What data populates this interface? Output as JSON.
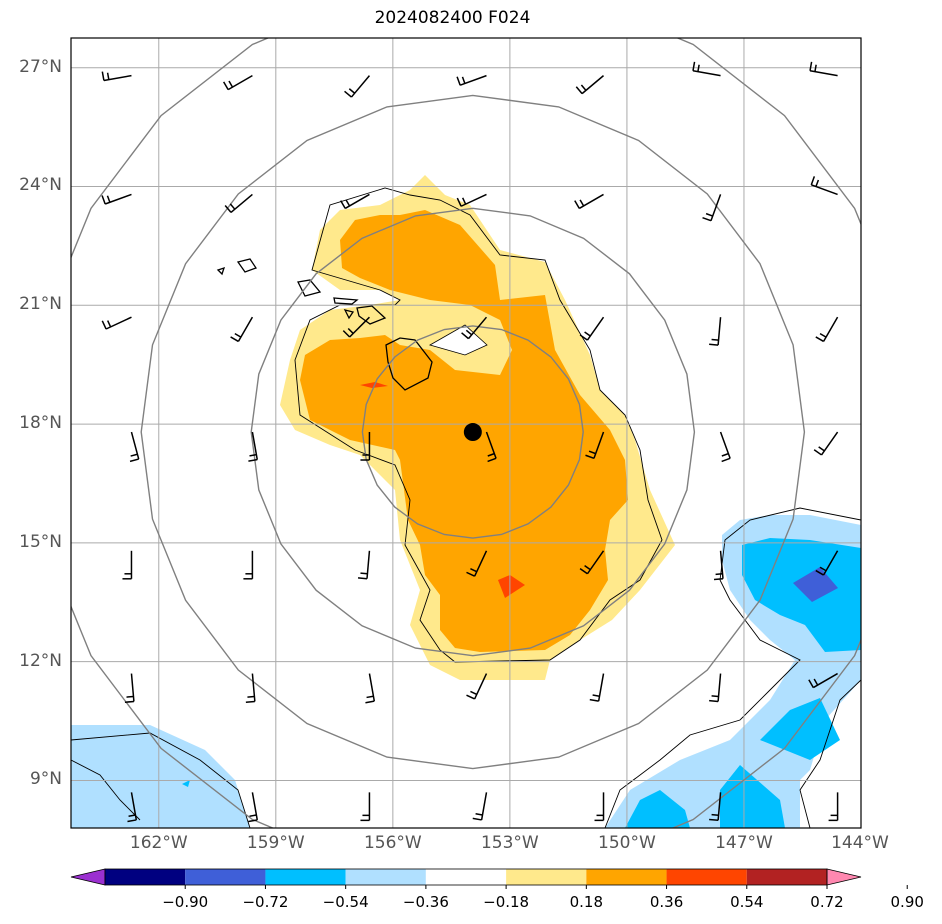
{
  "title": "2024082400 F024",
  "map": {
    "lon_range": [
      -164.25,
      -144.0
    ],
    "lat_range": [
      7.8,
      27.75
    ],
    "lat_ticks": [
      {
        "value": 27,
        "label": "27°N"
      },
      {
        "value": 24,
        "label": "24°N"
      },
      {
        "value": 21,
        "label": "21°N"
      },
      {
        "value": 18,
        "label": "18°N"
      },
      {
        "value": 15,
        "label": "15°N"
      },
      {
        "value": 12,
        "label": "12°N"
      },
      {
        "value": 9,
        "label": "9°N"
      }
    ],
    "lon_ticks": [
      {
        "value": -162,
        "label": "162°W"
      },
      {
        "value": -159,
        "label": "159°W"
      },
      {
        "value": -156,
        "label": "156°W"
      },
      {
        "value": -153,
        "label": "153°W"
      },
      {
        "value": -150,
        "label": "150°W"
      },
      {
        "value": -147,
        "label": "147°W"
      },
      {
        "value": -144,
        "label": "144°W"
      }
    ],
    "center_marker": {
      "lon": -153.95,
      "lat": 17.8
    },
    "range_rings": [
      {
        "lon_radius": 2.83,
        "lat_radius": 2.68
      },
      {
        "lon_radius": 5.68,
        "lat_radius": 5.65
      },
      {
        "lon_radius": 8.5,
        "lat_radius": 8.5
      },
      {
        "lon_radius": 11.3,
        "lat_radius": 11.3
      }
    ],
    "shaded_field": "vertical motion anomaly",
    "barb_lats": [
      26.8,
      23.8,
      20.7,
      17.8,
      14.8,
      11.7,
      8.7
    ],
    "barb_lons": [
      -162.7,
      -159.6,
      -156.6,
      -153.6,
      -150.6,
      -147.6,
      -144.6
    ]
  },
  "colorbar": {
    "colors": [
      "#9b30d0",
      "#000080",
      "#3f5fd8",
      "#00bfff",
      "#b0e0ff",
      "#ffffff",
      "#ffe98c",
      "#ffa500",
      "#ff4500",
      "#b22222",
      "#ff88b0"
    ],
    "tick_labels": [
      "−0.90",
      "−0.72",
      "−0.54",
      "−0.36",
      "−0.18",
      "0.18",
      "0.36",
      "0.54",
      "0.72",
      "0.90"
    ],
    "tick_values": [
      -0.9,
      -0.72,
      -0.54,
      -0.36,
      -0.18,
      0.18,
      0.36,
      0.54,
      0.72,
      0.9
    ]
  }
}
